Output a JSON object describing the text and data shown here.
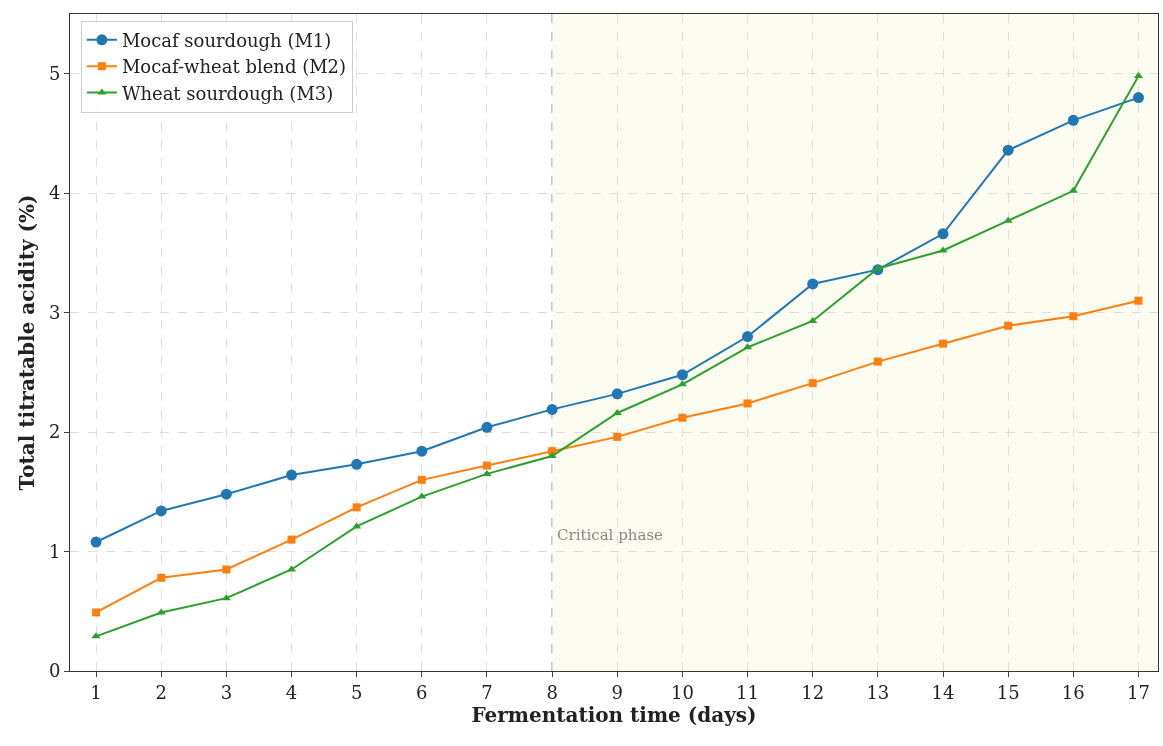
{
  "chart_data": {
    "type": "line",
    "xlabel": "Fermentation time (days)",
    "ylabel": "Total titratable acidity (%)",
    "x": [
      1,
      2,
      3,
      4,
      5,
      6,
      7,
      8,
      9,
      10,
      11,
      12,
      13,
      14,
      15,
      16,
      17
    ],
    "series": [
      {
        "name": "Mocaf sourdough (M1)",
        "color": "#1f77b4",
        "marker": "circle",
        "values": [
          1.08,
          1.34,
          1.48,
          1.64,
          1.73,
          1.84,
          2.04,
          2.19,
          2.32,
          2.48,
          2.8,
          3.24,
          3.36,
          3.66,
          4.36,
          4.61,
          4.8
        ]
      },
      {
        "name": "Mocaf-wheat blend (M2)",
        "color": "#ff7f0e",
        "marker": "square",
        "values": [
          0.49,
          0.78,
          0.85,
          1.1,
          1.37,
          1.6,
          1.72,
          1.84,
          1.96,
          2.12,
          2.24,
          2.41,
          2.59,
          2.74,
          2.89,
          2.97,
          3.1
        ]
      },
      {
        "name": "Wheat sourdough (M3)",
        "color": "#2ca02c",
        "marker": "triangle",
        "values": [
          0.29,
          0.49,
          0.61,
          0.85,
          1.21,
          1.46,
          1.65,
          1.8,
          2.16,
          2.4,
          2.71,
          2.93,
          3.37,
          3.52,
          3.77,
          4.02,
          4.98
        ]
      }
    ],
    "xlim": [
      0.6,
      17.3
    ],
    "xticks": [
      1,
      2,
      3,
      4,
      5,
      6,
      7,
      8,
      9,
      10,
      11,
      12,
      13,
      14,
      15,
      16,
      17
    ],
    "ylim": [
      0,
      5.5
    ],
    "yticks": [
      0,
      1,
      2,
      3,
      4,
      5
    ],
    "ref_lines": [
      {
        "axis": "x",
        "value": 8,
        "label": "Critical phase",
        "color": "#aaaaaa",
        "line_style": "dashed"
      }
    ],
    "bands": [
      {
        "axis": "x",
        "from": 8,
        "to": 17.3,
        "color": "#fbfbef"
      }
    ],
    "grid": true,
    "legend": "top left",
    "line_style": "solid"
  }
}
